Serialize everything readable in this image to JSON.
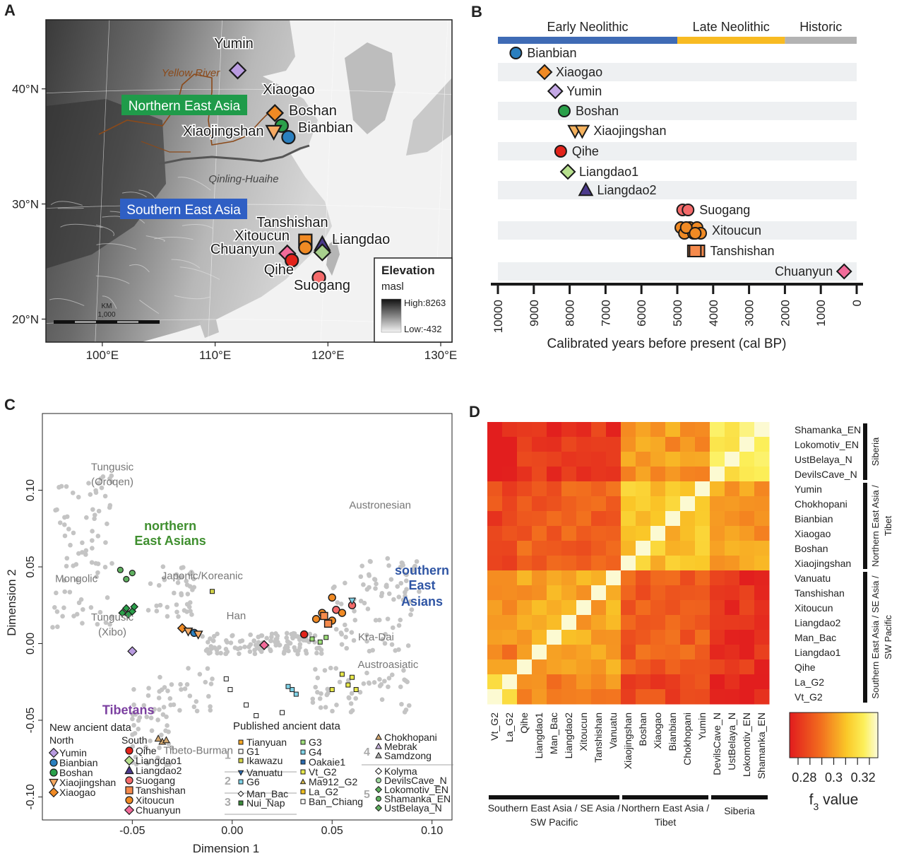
{
  "panel_labels": {
    "a": "A",
    "b": "B",
    "c": "C",
    "d": "D"
  },
  "chart_data": [
    {
      "panel": "A",
      "type": "scatter",
      "x_ticks": [
        {
          "label": "100°E",
          "value": 100
        },
        {
          "label": "110°E",
          "value": 110
        },
        {
          "label": "120°E",
          "value": 120
        },
        {
          "label": "130°E",
          "value": 130
        }
      ],
      "y_ticks": [
        {
          "label": "40°N",
          "value": 40
        },
        {
          "label": "30°N",
          "value": 30
        },
        {
          "label": "20°N",
          "value": 20
        }
      ],
      "xlim": [
        95,
        131
      ],
      "ylim": [
        18,
        46
      ],
      "region_labels": {
        "north": "Northern East Asia",
        "south": "Southern East Asia"
      },
      "region_colors": {
        "north": "#1f9b4a",
        "south": "#2f5fc4"
      },
      "map_labels": {
        "river": "Yellow River",
        "line": "Qinling-Huaihe"
      },
      "legend": {
        "title": "Elevation",
        "unit": "masl",
        "high": "High:8263",
        "low": "Low:-432"
      },
      "scale_bar": {
        "unit": "KM",
        "value": "1,000"
      },
      "sites": [
        {
          "name": "Yumin",
          "lon": 112.0,
          "lat": 41.6,
          "color": "#b99be0",
          "shape": "diamond"
        },
        {
          "name": "Xiaogao",
          "lon": 115.3,
          "lat": 37.9,
          "color": "#f08a24",
          "shape": "diamond"
        },
        {
          "name": "Boshan",
          "lon": 115.9,
          "lat": 36.8,
          "color": "#2aa04a",
          "shape": "circle"
        },
        {
          "name": "Xiaojingshan",
          "lon": 115.2,
          "lat": 36.3,
          "color": "#f5a962",
          "shape": "triangle-down"
        },
        {
          "name": "Bianbian",
          "lon": 116.5,
          "lat": 35.8,
          "color": "#2a7fbf",
          "shape": "circle"
        },
        {
          "name": "Tanshishan",
          "lon": 118.0,
          "lat": 26.8,
          "color": "#f08a24",
          "shape": "square"
        },
        {
          "name": "Xitoucun",
          "lon": 118.0,
          "lat": 26.2,
          "color": "#f08a24",
          "shape": "circle"
        },
        {
          "name": "Chuanyun",
          "lon": 116.4,
          "lat": 25.7,
          "color": "#f26b9a",
          "shape": "diamond"
        },
        {
          "name": "Liangdao",
          "lon": 119.5,
          "lat": 26.5,
          "color": "#4b3a8c",
          "shape": "triangle"
        },
        {
          "name": "Liangdao",
          "lon": 119.5,
          "lat": 25.8,
          "color": "#a8d08d",
          "shape": "diamond"
        },
        {
          "name": "Qihe",
          "lon": 116.8,
          "lat": 25.1,
          "color": "#e2231a",
          "shape": "circle"
        },
        {
          "name": "Suogang",
          "lon": 119.2,
          "lat": 23.6,
          "color": "#f46a6a",
          "shape": "circle"
        }
      ],
      "site_labels": [
        "Yumin",
        "Xiaogao",
        "Boshan",
        "Xiaojingshan",
        "Bianbian",
        "Tanshishan",
        "Xitoucun",
        "Chuanyun",
        "Liangdao",
        "Qihe",
        "Suogang"
      ]
    },
    {
      "panel": "B",
      "type": "scatter",
      "periods": [
        {
          "name": "Early Neolithic",
          "from": 10000,
          "to": 5000,
          "color": "#3f6bb5"
        },
        {
          "name": "Late Neolithic",
          "from": 5000,
          "to": 2000,
          "color": "#f8bb22"
        },
        {
          "name": "Historic",
          "from": 2000,
          "to": 0,
          "color": "#b3b3b3"
        }
      ],
      "xlabel": "Calibrated years before present (cal BP)",
      "xlim": [
        10000,
        0
      ],
      "ticks": [
        10000,
        9000,
        8000,
        7000,
        6000,
        5000,
        4000,
        3000,
        2000,
        1000,
        0
      ],
      "sites": [
        {
          "name": "Bianbian",
          "dates": [
            9500
          ],
          "color": "#2a7fbf",
          "shape": "circle"
        },
        {
          "name": "Xiaogao",
          "dates": [
            8700
          ],
          "color": "#f08a24",
          "shape": "diamond"
        },
        {
          "name": "Yumin",
          "dates": [
            8400
          ],
          "color": "#c4a8e6",
          "shape": "diamond"
        },
        {
          "name": "Boshan",
          "dates": [
            8150
          ],
          "color": "#2aa04a",
          "shape": "circle"
        },
        {
          "name": "Xiaojingshan",
          "dates": [
            7850,
            7650
          ],
          "color": "#f5b25e",
          "shape": "triangle-down"
        },
        {
          "name": "Qihe",
          "dates": [
            8250
          ],
          "color": "#e2231a",
          "shape": "circle"
        },
        {
          "name": "Liangdao1",
          "dates": [
            8050
          ],
          "color": "#b7e08e",
          "shape": "diamond"
        },
        {
          "name": "Liangdao2",
          "dates": [
            7550
          ],
          "color": "#4b3a8c",
          "shape": "triangle"
        },
        {
          "name": "Suogang",
          "dates": [
            4850,
            4700
          ],
          "color": "#f46a6a",
          "shape": "circle"
        },
        {
          "name": "Xitoucun",
          "dates": [
            4900,
            4800,
            4650,
            4550,
            4450,
            4350,
            4750,
            4500
          ],
          "color": "#f08a24",
          "shape": "circle"
        },
        {
          "name": "Tanshishan",
          "dates": [
            4550,
            4400,
            4500
          ],
          "color": "#f58a4c",
          "shape": "square"
        },
        {
          "name": "Chuanyun",
          "dates": [
            350
          ],
          "color": "#f26b9a",
          "shape": "diamond"
        }
      ]
    },
    {
      "panel": "C",
      "type": "scatter",
      "xlabel": "Dimension 1",
      "ylabel": "Dimension 2",
      "xlim": [
        -0.095,
        0.11
      ],
      "ylim": [
        -0.115,
        0.15
      ],
      "x_ticks": [
        "-0.05",
        "0.00",
        "0.05",
        "0.10"
      ],
      "y_ticks": [
        "-0.10",
        "-0.05",
        "0.00",
        "0.05",
        "0.10"
      ],
      "group_labels": [
        {
          "text": "Tungusic",
          "text2": "(Oroqen)",
          "x": -0.06,
          "y": 0.113,
          "color": "#777777"
        },
        {
          "text": "Mongolic",
          "x": -0.078,
          "y": 0.04,
          "color": "#777777"
        },
        {
          "text": "Tungusic",
          "text2": "(Xibo)",
          "x": -0.06,
          "y": 0.015,
          "color": "#777777"
        },
        {
          "text": "Japonic/Koreanic",
          "x": -0.015,
          "y": 0.042,
          "color": "#777777"
        },
        {
          "text": "Han",
          "x": 0.002,
          "y": 0.016,
          "color": "#777777"
        },
        {
          "text": "Austronesian",
          "x": 0.074,
          "y": 0.088,
          "color": "#777777"
        },
        {
          "text": "Kra-Dai",
          "x": 0.072,
          "y": 0.002,
          "color": "#777777"
        },
        {
          "text": "Austroasiatic",
          "x": 0.078,
          "y": -0.016,
          "color": "#777777"
        },
        {
          "text": "Tibeto-Burman",
          "x": -0.017,
          "y": -0.072,
          "color": "#777777"
        },
        {
          "text": "northern",
          "text2": "East Asians",
          "x": -0.031,
          "y": 0.074,
          "color": "#3f8f2f",
          "bold": true
        },
        {
          "text": "southern",
          "text2": "East",
          "text3": "Asians",
          "x": 0.095,
          "y": 0.045,
          "color": "#2f55a4",
          "bold": true
        },
        {
          "text": "Tibetans",
          "x": -0.052,
          "y": -0.046,
          "color": "#7b3fa0",
          "bold": true
        }
      ],
      "legend_new": {
        "title": "New ancient data",
        "north_title": "North",
        "south_title": "South",
        "north": [
          {
            "name": "Yumin",
            "color": "#b99be0",
            "shape": "diamond"
          },
          {
            "name": "Bianbian",
            "color": "#2a7fbf",
            "shape": "circle"
          },
          {
            "name": "Boshan",
            "color": "#2aa04a",
            "shape": "circle"
          },
          {
            "name": "Xiaojingshan",
            "color": "#f5a962",
            "shape": "triangle-down"
          },
          {
            "name": "Xiaogao",
            "color": "#f08a24",
            "shape": "diamond"
          }
        ],
        "south": [
          {
            "name": "Qihe",
            "color": "#e2231a",
            "shape": "circle"
          },
          {
            "name": "Liangdao1",
            "color": "#b7e08e",
            "shape": "diamond"
          },
          {
            "name": "Liangdao2",
            "color": "#4b3a8c",
            "shape": "triangle"
          },
          {
            "name": "Suogang",
            "color": "#f46a6a",
            "shape": "circle"
          },
          {
            "name": "Tanshishan",
            "color": "#f58a4c",
            "shape": "square"
          },
          {
            "name": "Xitoucun",
            "color": "#f08a24",
            "shape": "circle"
          },
          {
            "name": "Chuanyun",
            "color": "#f26b9a",
            "shape": "diamond"
          }
        ]
      },
      "legend_pub": {
        "title": "Published ancient data",
        "groups": [
          {
            "num": "1",
            "items": [
              {
                "name": "Tianyuan",
                "color": "#f5a623",
                "shape": "square-small"
              },
              {
                "name": "G1",
                "color": "#ffffff",
                "shape": "square-small"
              },
              {
                "name": "Ikawazu",
                "color": "#d4d44a",
                "shape": "square-small"
              }
            ]
          },
          {
            "num": "2",
            "items": [
              {
                "name": "Vanuatu",
                "color": "#2b6cb0",
                "shape": "triangle-down"
              },
              {
                "name": "G6",
                "color": "#7fd3e8",
                "shape": "square-small"
              }
            ]
          },
          {
            "num": "3",
            "items": [
              {
                "name": "Man_Bac",
                "color": "#ffffff",
                "shape": "diamond-small"
              },
              {
                "name": "Nui_Nap",
                "color": "#3a8a3a",
                "shape": "square-small"
              }
            ]
          }
        ],
        "col2": [
          {
            "name": "G3",
            "color": "#9fe07a",
            "shape": "square-small"
          },
          {
            "name": "G4",
            "color": "#7fd3e8",
            "shape": "square-small"
          },
          {
            "name": "Oakaie1",
            "color": "#2b6cb0",
            "shape": "square-small"
          },
          {
            "name": "Vt_G2",
            "color": "#e8e84a",
            "shape": "square-small"
          },
          {
            "name": "Ma912_G2",
            "color": "#d4b84a",
            "shape": "triangle"
          },
          {
            "name": "La_G2",
            "color": "#f0c020",
            "shape": "square-small"
          },
          {
            "name": "Ban_Chiang",
            "color": "#ffffff",
            "shape": "square-small"
          }
        ],
        "group4": {
          "num": "4",
          "items": [
            {
              "name": "Chokhopani",
              "color": "#d4a870",
              "shape": "triangle"
            },
            {
              "name": "Mebrak",
              "color": "#c4b0d8",
              "shape": "triangle"
            },
            {
              "name": "Samdzong",
              "color": "#b0b0b0",
              "shape": "triangle"
            }
          ]
        },
        "group5": {
          "num": "5",
          "items": [
            {
              "name": "Kolyma",
              "color": "#ffffff",
              "shape": "diamond-small"
            },
            {
              "name": "DevilsCave_N",
              "color": "#a0d8a0",
              "shape": "circle-small"
            },
            {
              "name": "Lokomotiv_EN",
              "color": "#60b060",
              "shape": "diamond-small"
            },
            {
              "name": "Shamanka_EN",
              "color": "#60b060",
              "shape": "circle-small"
            },
            {
              "name": "UstBelaya_N",
              "color": "#60b060",
              "shape": "diamond-small"
            }
          ]
        }
      }
    },
    {
      "panel": "D",
      "type": "heatmap",
      "rows": [
        "Shamanka_EN",
        "Lokomotiv_EN",
        "UstBelaya_N",
        "DevilsCave_N",
        "Yumin",
        "Chokhopani",
        "Bianbian",
        "Xiaogao",
        "Boshan",
        "Xiaojingshan",
        "Vanuatu",
        "Tanshishan",
        "Xitoucun",
        "Liangdao2",
        "Man_Bac",
        "Liangdao1",
        "Qihe",
        "La_G2",
        "Vt_G2"
      ],
      "columns": [
        "Vt_G2",
        "La_G2",
        "Qihe",
        "Liangdao1",
        "Man_Bac",
        "Liangdao2",
        "Xitoucun",
        "Tanshishan",
        "Vanuatu",
        "Xiaojingshan",
        "Boshan",
        "Xiaogao",
        "Bianbian",
        "Chokhopani",
        "Yumin",
        "DevilsCave_N",
        "UstBelaya_N",
        "Lokomotiv_EN",
        "Shamanka_EN"
      ],
      "row_groups": [
        {
          "name": "Siberia",
          "from": 0,
          "to": 3
        },
        {
          "name": "Northern East Asia / Tibet",
          "from": 4,
          "to": 9
        },
        {
          "name": "Southern East Asia / SE Asia / SW Pacific",
          "from": 10,
          "to": 18
        }
      ],
      "col_groups": [
        {
          "name": "Southern East Asia / SE Asia / SW Pacific",
          "from": 0,
          "to": 8
        },
        {
          "name": "Northern East Asia / Tibet",
          "from": 9,
          "to": 14
        },
        {
          "name": "Siberia",
          "from": 15,
          "to": 18
        }
      ],
      "colorbar": {
        "label": "f3 value",
        "label_main": "f",
        "label_sub": "3",
        "label_rest": " value",
        "min": 0.27,
        "max": 0.33,
        "ticks": [
          0.28,
          0.3,
          0.32
        ],
        "tick_labels": [
          "0.28",
          "0.3",
          "0.32"
        ]
      },
      "approx_values": {
        "within_group": 0.31,
        "between_group": 0.28,
        "south_north": 0.29
      }
    }
  ]
}
